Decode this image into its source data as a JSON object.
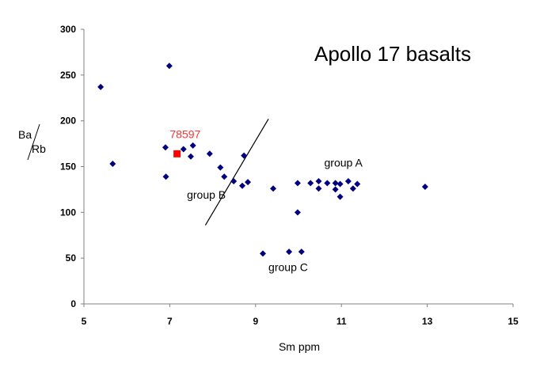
{
  "chart_data": {
    "type": "scatter",
    "title": "Apollo 17 basalts",
    "xlabel": "Sm ppm",
    "ylabel_top": "Ba",
    "ylabel_bottom": "Rb",
    "xlim": [
      5,
      15
    ],
    "ylim": [
      0,
      300
    ],
    "xticks": [
      "5",
      "7",
      "9",
      "11",
      "13",
      "15"
    ],
    "xtick_values": [
      5,
      7,
      9,
      11,
      13,
      15
    ],
    "yticks": [
      "0",
      "50",
      "100",
      "150",
      "200",
      "250",
      "300"
    ],
    "ytick_values": [
      0,
      50,
      100,
      150,
      200,
      250,
      300
    ],
    "grid": false,
    "series": [
      {
        "name": "basalts",
        "color": "#000080",
        "marker": "diamond",
        "points": [
          [
            5.39,
            237
          ],
          [
            6.99,
            260
          ],
          [
            5.67,
            153
          ],
          [
            6.9,
            171
          ],
          [
            7.32,
            169
          ],
          [
            7.54,
            173
          ],
          [
            7.49,
            161
          ],
          [
            6.91,
            139
          ],
          [
            7.93,
            164
          ],
          [
            8.18,
            149
          ],
          [
            8.27,
            139
          ],
          [
            8.49,
            134
          ],
          [
            8.73,
            162
          ],
          [
            8.69,
            129
          ],
          [
            8.82,
            133
          ],
          [
            9.41,
            126
          ],
          [
            9.98,
            132
          ],
          [
            10.28,
            132
          ],
          [
            10.47,
            134
          ],
          [
            10.47,
            126
          ],
          [
            10.67,
            132
          ],
          [
            10.86,
            132
          ],
          [
            10.97,
            131
          ],
          [
            10.86,
            125
          ],
          [
            10.97,
            117
          ],
          [
            11.16,
            134
          ],
          [
            11.27,
            126
          ],
          [
            11.37,
            131
          ],
          [
            12.95,
            128
          ],
          [
            9.98,
            100
          ],
          [
            9.17,
            55
          ],
          [
            9.78,
            57
          ],
          [
            10.07,
            57
          ]
        ]
      },
      {
        "name": "78597",
        "color": "#ff0000",
        "marker": "square",
        "points": [
          [
            7.17,
            164
          ]
        ]
      }
    ],
    "divider_line": [
      [
        7.83,
        86
      ],
      [
        9.3,
        202
      ]
    ],
    "annotations": [
      {
        "text": "78597",
        "x": 7.0,
        "y": 181,
        "color": "#ff3333"
      },
      {
        "text": "group A",
        "x": 10.6,
        "y": 150
      },
      {
        "text": "group B",
        "x": 7.4,
        "y": 115
      },
      {
        "text": "group C",
        "x": 9.3,
        "y": 36
      }
    ]
  }
}
